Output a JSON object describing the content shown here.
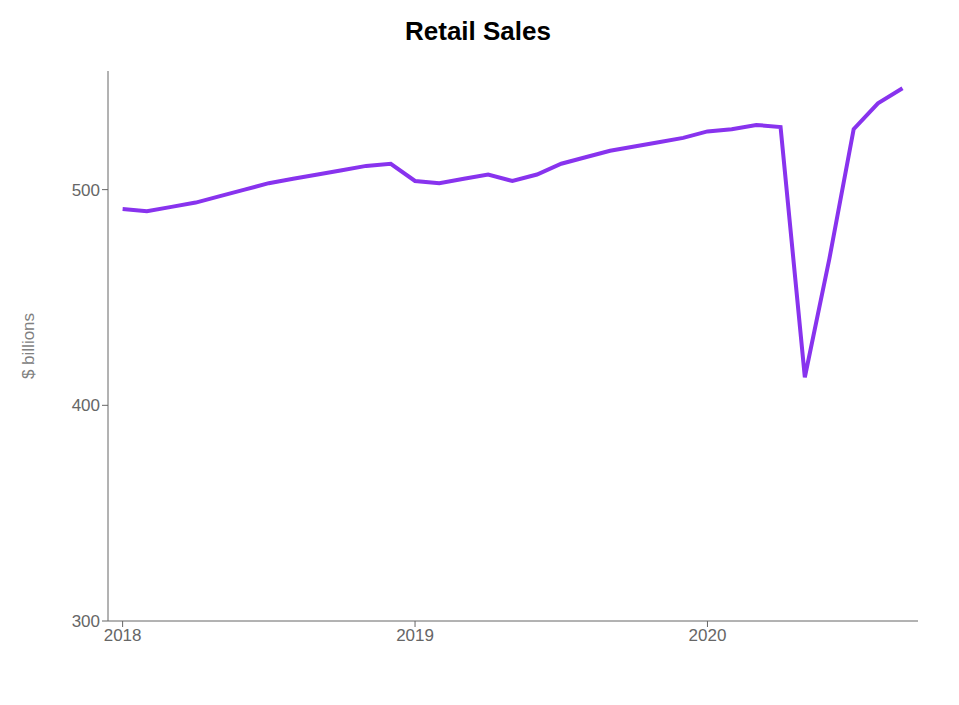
{
  "chart_data": {
    "type": "line",
    "title": "Retail Sales",
    "ylabel": "$ billions",
    "color": "#8833ee",
    "x": [
      2018.0,
      2018.083,
      2018.167,
      2018.25,
      2018.333,
      2018.417,
      2018.5,
      2018.583,
      2018.667,
      2018.75,
      2018.833,
      2018.917,
      2019.0,
      2019.083,
      2019.167,
      2019.25,
      2019.333,
      2019.417,
      2019.5,
      2019.583,
      2019.667,
      2019.75,
      2019.833,
      2019.917,
      2020.0,
      2020.083,
      2020.167,
      2020.25,
      2020.333,
      2020.417,
      2020.5,
      2020.583,
      2020.667
    ],
    "values": [
      491,
      490,
      492,
      494,
      497,
      500,
      503,
      505,
      507,
      509,
      511,
      512,
      504,
      503,
      505,
      507,
      504,
      507,
      512,
      515,
      518,
      520,
      522,
      524,
      527,
      528,
      530,
      529,
      413,
      468,
      528,
      540,
      547
    ],
    "xlim": [
      2017.95,
      2020.72
    ],
    "xticks": [
      2018,
      2019,
      2020
    ],
    "ylim": [
      300,
      555
    ],
    "yticks": [
      300,
      400,
      500
    ],
    "grid": false
  }
}
